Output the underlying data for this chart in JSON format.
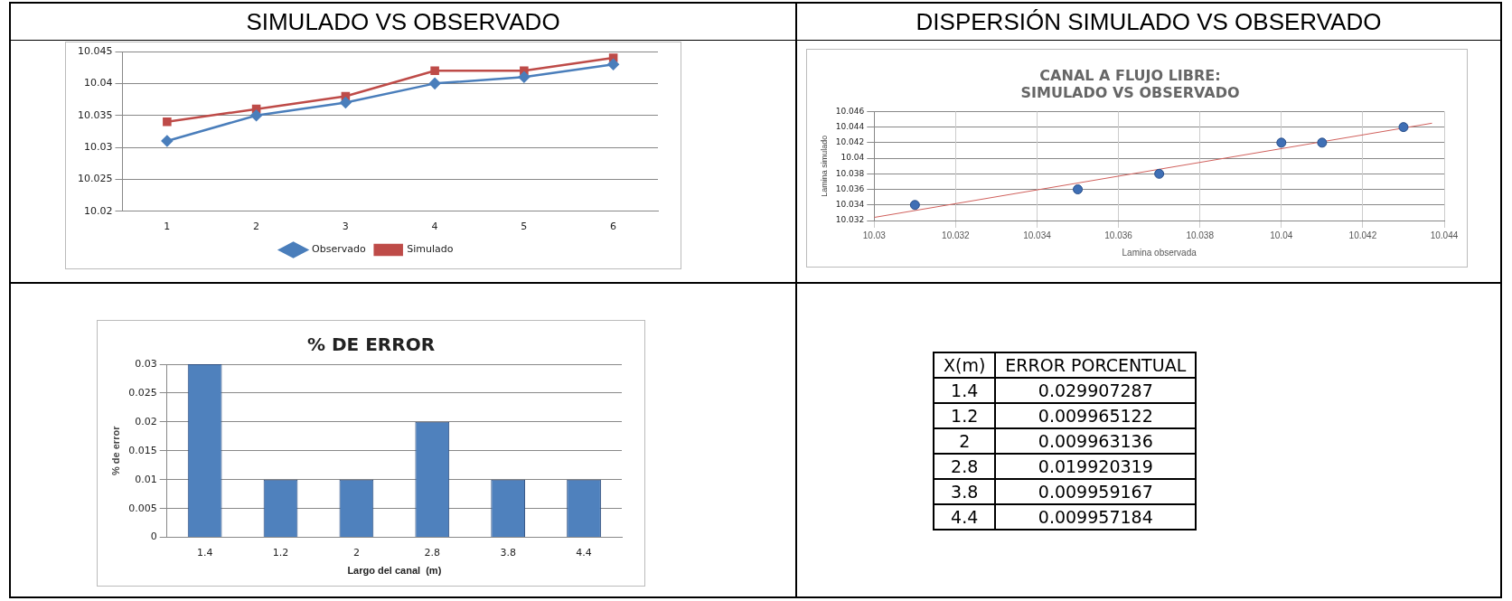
{
  "chart_data": [
    {
      "type": "line",
      "title": "SIMULADO VS OBSERVADO",
      "categories": [
        "1",
        "2",
        "3",
        "4",
        "5",
        "6"
      ],
      "ylim": [
        10.02,
        10.045
      ],
      "yticks": [
        10.02,
        10.025,
        10.03,
        10.035,
        10.04,
        10.045
      ],
      "grid": "y",
      "legend": "bottom",
      "line_style": "solid",
      "series": [
        {
          "name": "Observado",
          "color": "#4a7ebb",
          "marker": "diamond",
          "values": [
            10.031,
            10.035,
            10.037,
            10.04,
            10.041,
            10.043
          ]
        },
        {
          "name": "Simulado",
          "color": "#be4b48",
          "marker": "square",
          "values": [
            10.034,
            10.036,
            10.038,
            10.042,
            10.042,
            10.044
          ]
        }
      ]
    },
    {
      "type": "scatter",
      "title": "DISPERSIÓN SIMULADO VS OBSERVADO",
      "subtitle": "CANAL A FLUJO LIBRE:\nSIMULADO VS OBSERVADO",
      "xlabel": "Lamina observada",
      "ylabel": "Lamina simulado",
      "xlim": [
        10.03,
        10.044
      ],
      "xticks": [
        10.03,
        10.032,
        10.034,
        10.036,
        10.038,
        10.04,
        10.042,
        10.044
      ],
      "ylim": [
        10.032,
        10.046
      ],
      "yticks": [
        10.032,
        10.034,
        10.036,
        10.038,
        10.04,
        10.042,
        10.044,
        10.046
      ],
      "grid": true,
      "series": [
        {
          "color": "#3f6fb5",
          "marker": "circle",
          "x": [
            10.031,
            10.035,
            10.037,
            10.04,
            10.041,
            10.043
          ],
          "values": [
            10.034,
            10.036,
            10.038,
            10.042,
            10.042,
            10.044
          ]
        },
        {
          "type": "line",
          "color": "#d0605c",
          "marker": "none",
          "x": [
            10.03,
            10.0437
          ],
          "values": [
            10.0324,
            10.0445
          ]
        }
      ]
    },
    {
      "type": "bar",
      "title": "% DE ERROR",
      "xlabel": "Largo del canal  (m)",
      "ylabel": "% de error",
      "categories": [
        "1.4",
        "1.2",
        "2",
        "2.8",
        "3.8",
        "4.4"
      ],
      "ylim": [
        0,
        0.03
      ],
      "yticks": [
        {
          "value": 0,
          "label": "0"
        },
        0.005,
        0.01,
        0.015,
        0.02,
        0.025,
        0.03
      ],
      "grid": "y",
      "color": "#4f81bd",
      "values": [
        0.03,
        0.01,
        0.01,
        0.02,
        0.01,
        0.01
      ]
    },
    {
      "type": "other",
      "xlabel": "X(m)",
      "ylabel": "ERROR PORCENTUAL",
      "categories": [
        "1.4",
        "1.2",
        "2",
        "2.8",
        "3.8",
        "4.4"
      ],
      "data_labels": true,
      "values": [
        0.029907287,
        0.009965122,
        0.009963136,
        0.019920319,
        0.009959167,
        0.009957184
      ]
    }
  ]
}
